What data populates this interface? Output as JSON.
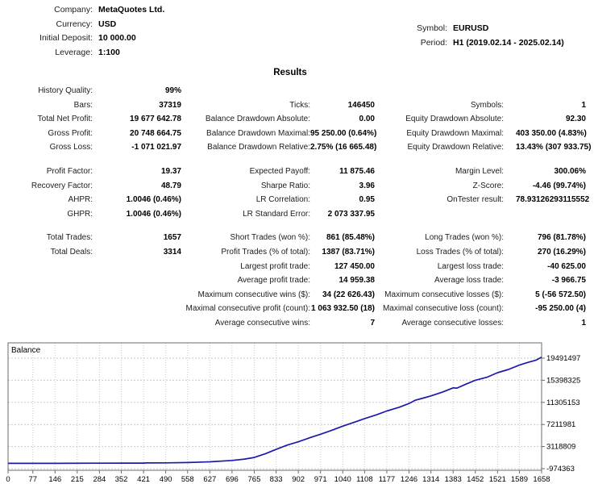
{
  "header": {
    "left": [
      {
        "label": "Company:",
        "value": "MetaQuotes Ltd."
      },
      {
        "label": "Currency:",
        "value": "USD"
      },
      {
        "label": "Initial Deposit:",
        "value": "10 000.00"
      },
      {
        "label": "Leverage:",
        "value": "1:100"
      }
    ],
    "right": [
      {
        "label": "Symbol:",
        "value": "EURUSD"
      },
      {
        "label": "Period:",
        "value": "H1 (2019.02.14 - 2025.02.14)"
      }
    ]
  },
  "results": {
    "title": "Results",
    "blocks": [
      [
        [
          [
            "History Quality:",
            "99%"
          ],
          null,
          null
        ],
        [
          [
            "Bars:",
            "37319"
          ],
          [
            "Ticks:",
            "146450"
          ],
          [
            "Symbols:",
            "1"
          ]
        ],
        [
          [
            "Total Net Profit:",
            "19 677 642.78"
          ],
          [
            "Balance Drawdown Absolute:",
            "0.00"
          ],
          [
            "Equity Drawdown Absolute:",
            "92.30"
          ]
        ],
        [
          [
            "Gross Profit:",
            "20 748 664.75"
          ],
          [
            "Balance Drawdown Maximal:",
            "95 250.00 (0.64%)"
          ],
          [
            "Equity Drawdown Maximal:",
            "403 350.00 (4.83%)"
          ]
        ],
        [
          [
            "Gross Loss:",
            "-1 071 021.97"
          ],
          [
            "Balance Drawdown Relative:",
            "2.75% (16 665.48)"
          ],
          [
            "Equity Drawdown Relative:",
            "13.43% (307 933.75)"
          ]
        ]
      ],
      [
        [
          [
            "Profit Factor:",
            "19.37"
          ],
          [
            "Expected Payoff:",
            "11 875.46"
          ],
          [
            "Margin Level:",
            "300.06%"
          ]
        ],
        [
          [
            "Recovery Factor:",
            "48.79"
          ],
          [
            "Sharpe Ratio:",
            "3.96"
          ],
          [
            "Z-Score:",
            "-4.46 (99.74%)"
          ]
        ],
        [
          [
            "AHPR:",
            "1.0046 (0.46%)"
          ],
          [
            "LR Correlation:",
            "0.95"
          ],
          [
            "OnTester result:",
            "78.93126293115552"
          ]
        ],
        [
          [
            "GHPR:",
            "1.0046 (0.46%)"
          ],
          [
            "LR Standard Error:",
            "2 073 337.95"
          ],
          null
        ]
      ],
      [
        [
          [
            "Total Trades:",
            "1657"
          ],
          [
            "Short Trades (won %):",
            "861 (85.48%)"
          ],
          [
            "Long Trades (won %):",
            "796 (81.78%)"
          ]
        ],
        [
          [
            "Total Deals:",
            "3314"
          ],
          [
            "Profit Trades (% of total):",
            "1387 (83.71%)"
          ],
          [
            "Loss Trades (% of total):",
            "270 (16.29%)"
          ]
        ],
        [
          null,
          [
            "Largest profit trade:",
            "127 450.00"
          ],
          [
            "Largest loss trade:",
            "-40 625.00"
          ]
        ],
        [
          null,
          [
            "Average profit trade:",
            "14 959.38"
          ],
          [
            "Average loss trade:",
            "-3 966.75"
          ]
        ],
        [
          null,
          [
            "Maximum consecutive wins ($):",
            "34 (22 626.43)"
          ],
          [
            "Maximum consecutive losses ($):",
            "5 (-56 572.50)"
          ]
        ],
        [
          null,
          [
            "Maximal consecutive profit (count):",
            "1 063 932.50 (18)"
          ],
          [
            "Maximal consecutive loss (count):",
            "-95 250.00 (4)"
          ]
        ],
        [
          null,
          [
            "Average consecutive wins:",
            "7"
          ],
          [
            "Average consecutive losses:",
            "1"
          ]
        ]
      ]
    ]
  },
  "chart_data": {
    "type": "line",
    "title": "Balance",
    "xlim": [
      0,
      1658
    ],
    "x_ticks": [
      0,
      77,
      146,
      215,
      284,
      352,
      421,
      490,
      558,
      627,
      696,
      765,
      833,
      902,
      971,
      1040,
      1108,
      1177,
      1246,
      1314,
      1383,
      1452,
      1521,
      1589,
      1658
    ],
    "y_ticks": [
      19491497,
      15398325,
      11305153,
      7211981,
      3118809,
      -974363
    ],
    "grid": "dotted",
    "legend_position": "top-left-inside",
    "series": [
      {
        "name": "Balance",
        "color": "#1c1aa8",
        "points": [
          [
            0,
            10000
          ],
          [
            150,
            14000
          ],
          [
            270,
            40000
          ],
          [
            352,
            52000
          ],
          [
            421,
            62000
          ],
          [
            430,
            85000
          ],
          [
            490,
            100000
          ],
          [
            558,
            160000
          ],
          [
            627,
            300000
          ],
          [
            696,
            550000
          ],
          [
            735,
            800000
          ],
          [
            765,
            1100000
          ],
          [
            800,
            1800000
          ],
          [
            833,
            2600000
          ],
          [
            868,
            3400000
          ],
          [
            902,
            4000000
          ],
          [
            940,
            4800000
          ],
          [
            971,
            5400000
          ],
          [
            1005,
            6100000
          ],
          [
            1040,
            6900000
          ],
          [
            1075,
            7600000
          ],
          [
            1108,
            8300000
          ],
          [
            1145,
            9000000
          ],
          [
            1177,
            9700000
          ],
          [
            1215,
            10400000
          ],
          [
            1246,
            11100000
          ],
          [
            1265,
            11700000
          ],
          [
            1290,
            12100000
          ],
          [
            1314,
            12500000
          ],
          [
            1350,
            13200000
          ],
          [
            1383,
            14000000
          ],
          [
            1395,
            13950000
          ],
          [
            1420,
            14600000
          ],
          [
            1452,
            15400000
          ],
          [
            1490,
            16000000
          ],
          [
            1521,
            16800000
          ],
          [
            1555,
            17400000
          ],
          [
            1589,
            18200000
          ],
          [
            1615,
            18700000
          ],
          [
            1640,
            19100000
          ],
          [
            1658,
            19677643
          ]
        ]
      }
    ]
  }
}
